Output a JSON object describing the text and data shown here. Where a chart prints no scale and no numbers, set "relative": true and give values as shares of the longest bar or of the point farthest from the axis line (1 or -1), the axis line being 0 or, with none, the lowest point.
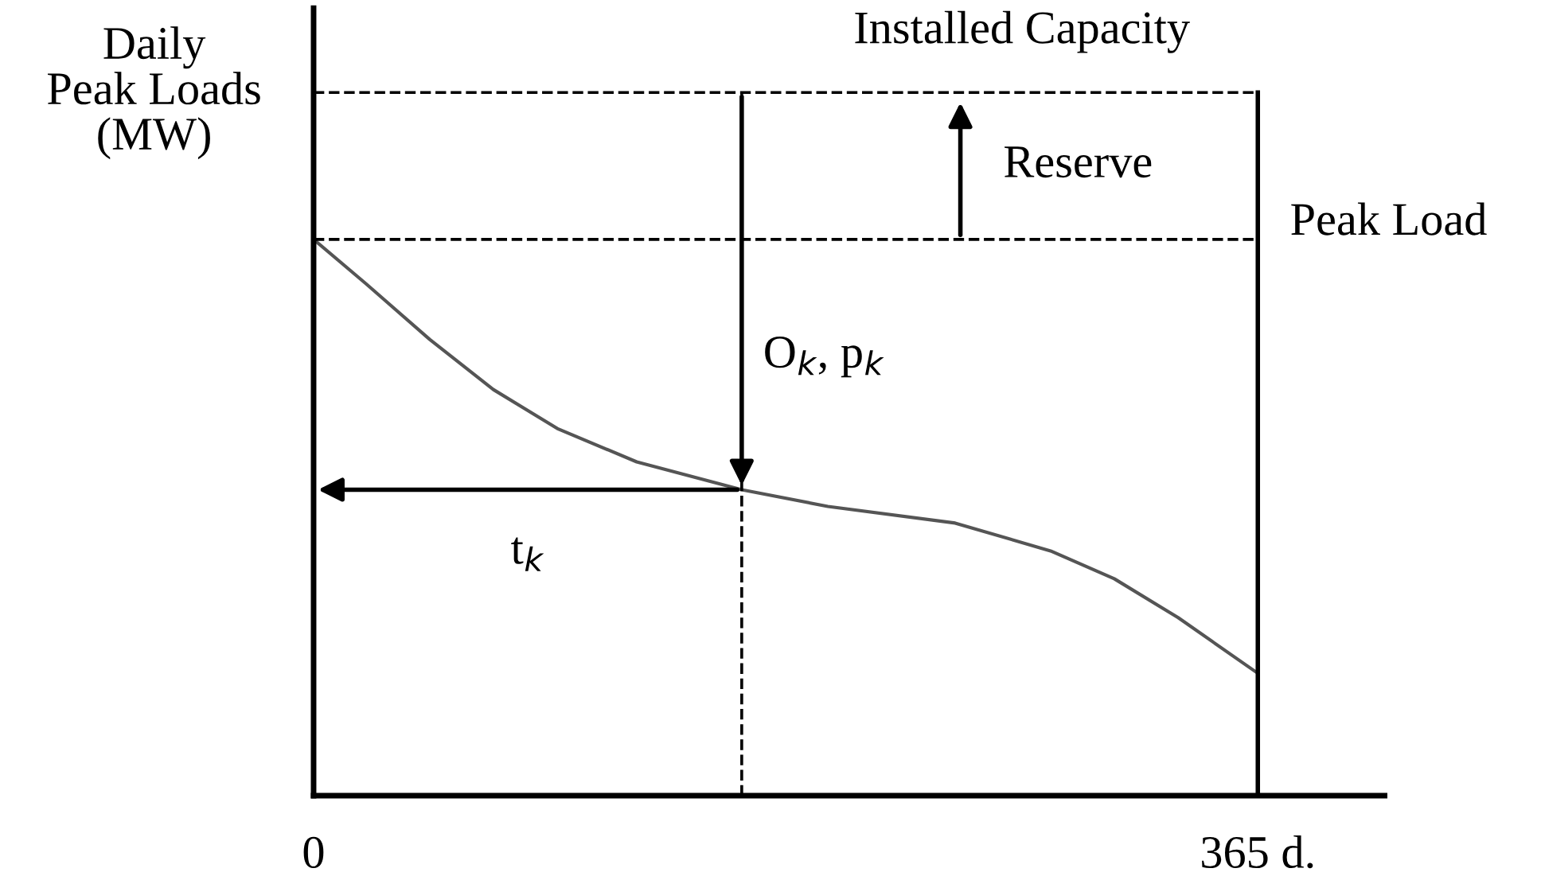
{
  "chart_data": {
    "type": "line",
    "relative": true,
    "ylabel": "Daily\nPeak Loads\n(MW)",
    "x": [
      0,
      20.3,
      44.9,
      69.5,
      94.2,
      124.9,
      165.5,
      198.8,
      248,
      284.9,
      309.5,
      334.2,
      365
    ],
    "series": [
      {
        "color": "#555555",
        "values": [
          1,
          0.92,
          0.82,
          0.73,
          0.66,
          0.6,
          0.55,
          0.52,
          0.49,
          0.44,
          0.39,
          0.32,
          0.22
        ]
      }
    ],
    "xlim": [
      0,
      414
    ],
    "xticks": [
      0,
      {
        "value": 365,
        "label": "365 d."
      }
    ],
    "ref_lines": [
      {
        "axis": "y",
        "value": 1.264,
        "label": "Installed Capacity",
        "line_style": "dashed",
        "color": "#000000"
      },
      {
        "axis": "y",
        "value": 1.0,
        "label": "Peak Load",
        "line_style": "dashed",
        "color": "#000000"
      },
      {
        "axis": "x",
        "value": 165.5,
        "line_style": "dashed",
        "color": "#000000"
      },
      {
        "axis": "x",
        "value": 365,
        "line_style": "solid",
        "color": "#000000"
      }
    ],
    "annotations": [
      "Reserve",
      "O$_{k}$, p$_{k}$",
      "t$_{k}$"
    ],
    "grid": false
  }
}
